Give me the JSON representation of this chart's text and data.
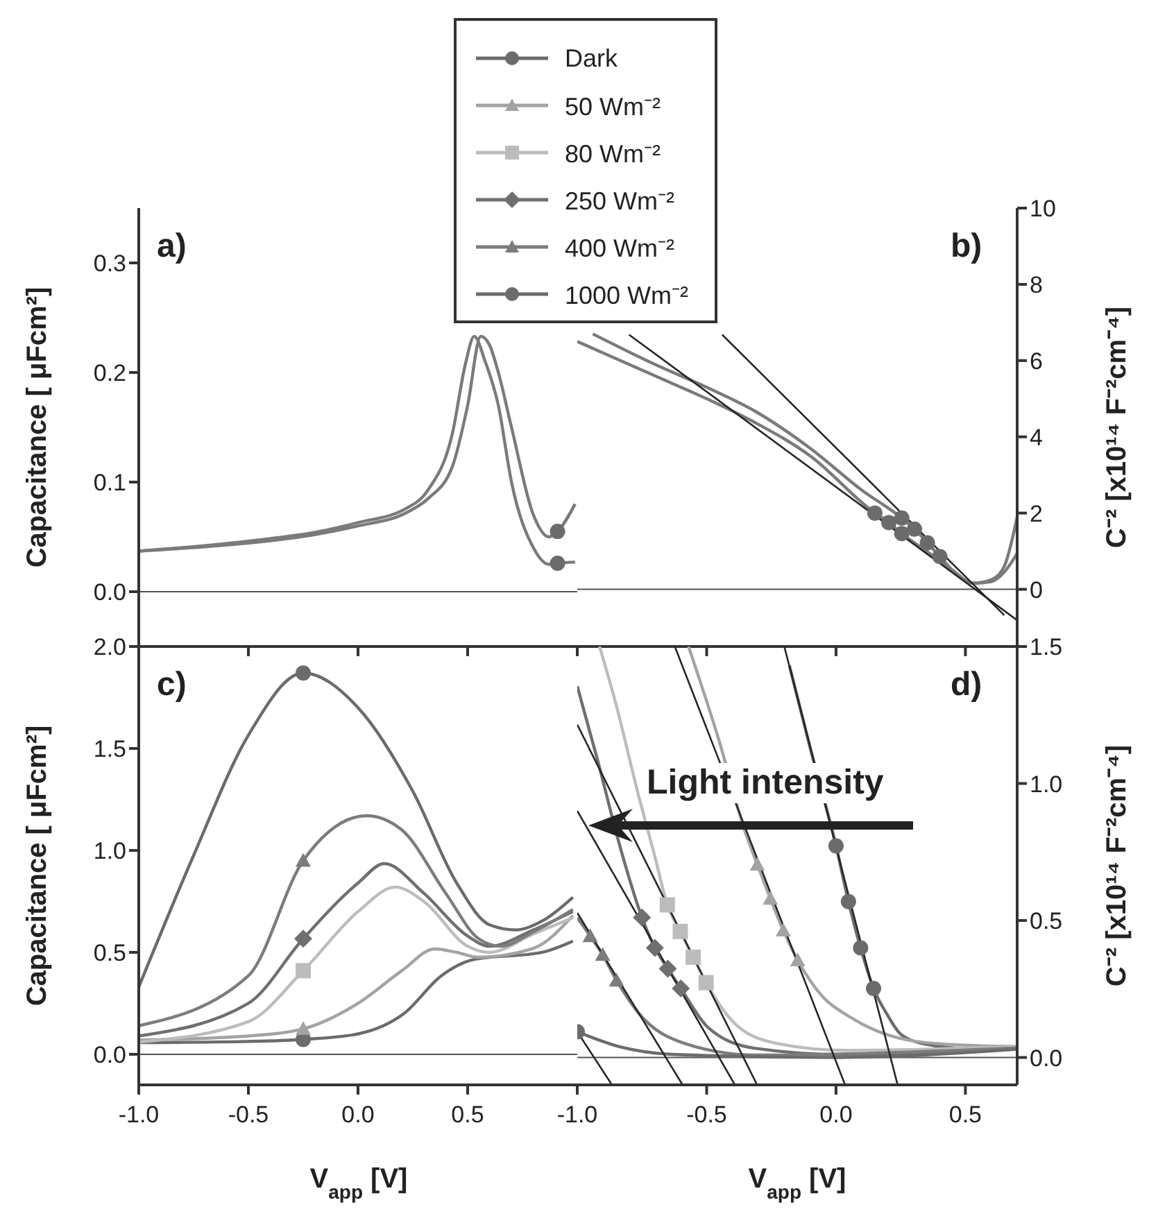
{
  "chart_data": [
    {
      "type": "line",
      "title": "a)",
      "ylabel": "Capacitance [ μFcm²]",
      "xlim": [
        -1,
        1
      ],
      "ylim": [
        -0.05,
        0.35
      ],
      "xticks": [
        -1,
        -0.5,
        0,
        0.5
      ],
      "yticks": [
        {
          "value": 0,
          "label": "0.0"
        },
        0.1,
        0.2,
        0.3
      ],
      "tick_labels": "y",
      "ref_lines": [
        {
          "axis": "y",
          "value": 0,
          "color": "#555555"
        }
      ],
      "series": [
        {
          "color": "#7a7a7a",
          "x": [
            -1,
            -0.7,
            -0.42,
            -0.2,
            0,
            0.22,
            0.32,
            0.43,
            0.49,
            0.53,
            0.58,
            0.64,
            0.7,
            0.8,
            0.87,
            0.91,
            0.99
          ],
          "values": [
            0.037,
            0.042,
            0.048,
            0.054,
            0.063,
            0.076,
            0.093,
            0.144,
            0.208,
            0.233,
            0.21,
            0.17,
            0.1,
            0.04,
            0.025,
            0.026,
            0.027
          ]
        },
        {
          "color": "#7a7a7a",
          "x": [
            -1,
            -0.7,
            -0.42,
            -0.2,
            0,
            0.22,
            0.32,
            0.43,
            0.5,
            0.56,
            0.6,
            0.64,
            0.7,
            0.8,
            0.87,
            0.91,
            0.99
          ],
          "values": [
            0.037,
            0.041,
            0.046,
            0.052,
            0.06,
            0.072,
            0.085,
            0.114,
            0.17,
            0.233,
            0.225,
            0.2,
            0.15,
            0.07,
            0.05,
            0.055,
            0.08
          ]
        },
        {
          "type": "scatter",
          "marker": "circle",
          "color": "#6b6b6b",
          "x": [
            0.91,
            0.91
          ],
          "values": [
            0.026,
            0.055
          ]
        }
      ]
    },
    {
      "type": "line",
      "title": "b)",
      "ylabel": "C⁻² [x10¹⁴ F⁻²cm⁻⁴]",
      "xlim": [
        -1,
        0.7
      ],
      "ylim": [
        -1.5,
        10
      ],
      "xticks": [
        -1,
        -0.5,
        0,
        0.5
      ],
      "yticks": [
        0,
        2,
        4,
        6,
        8,
        10
      ],
      "tick_labels": "y",
      "ref_lines": [
        {
          "axis": "y",
          "value": 0,
          "color": "#555555"
        }
      ],
      "series": [
        {
          "color": "#7a7a7a",
          "x": [
            -0.94,
            -0.7,
            -0.5,
            -0.32,
            -0.1,
            0.1,
            0.254,
            0.303,
            0.353,
            0.401,
            0.45,
            0.53,
            0.6,
            0.65,
            0.7
          ],
          "values": [
            6.7,
            5.9,
            5.3,
            4.7,
            3.7,
            2.6,
            1.87,
            1.58,
            1.22,
            0.86,
            0.5,
            0.16,
            0.25,
            0.6,
            1.9
          ]
        },
        {
          "color": "#7a7a7a",
          "x": [
            -1,
            -0.7,
            -0.5,
            -0.32,
            -0.1,
            0.15,
            0.204,
            0.254,
            0.35,
            0.45,
            0.53,
            0.6,
            0.65,
            0.7
          ],
          "values": [
            6.5,
            5.6,
            5.0,
            4.4,
            3.5,
            2.0,
            1.75,
            1.46,
            1.0,
            0.5,
            0.16,
            0.2,
            0.45,
            0.94
          ]
        },
        {
          "color": "#262626",
          "x": [
            -0.8,
            0.7
          ],
          "values": [
            6.68,
            -0.81
          ]
        },
        {
          "color": "#262626",
          "x": [
            -0.44,
            0.65
          ],
          "values": [
            6.68,
            -0.68
          ]
        },
        {
          "type": "scatter",
          "marker": "circle",
          "color": "#6b6b6b",
          "x": [
            0.254,
            0.303,
            0.353,
            0.401,
            0.15,
            0.204,
            0.254
          ],
          "values": [
            1.87,
            1.58,
            1.22,
            0.86,
            2.0,
            1.75,
            1.46
          ]
        }
      ]
    },
    {
      "type": "line",
      "title": "c)",
      "ylabel": "Capacitance [ μFcm²]",
      "xlabel": "V$_{app}$ [V]",
      "xlim": [
        -1,
        1
      ],
      "ylim": [
        -0.15,
        2
      ],
      "xticks": [
        {
          "value": -1,
          "label": "-1.0"
        },
        {
          "value": -0.5,
          "label": "-0.5"
        },
        {
          "value": 0,
          "label": "0.0"
        },
        0.5
      ],
      "yticks": [
        {
          "value": 0,
          "label": "0.0"
        },
        0.5,
        {
          "value": 1,
          "label": "1.0"
        },
        1.5,
        {
          "value": 2,
          "label": "2.0"
        }
      ],
      "legend": "top",
      "ref_lines": [
        {
          "axis": "y",
          "value": 0,
          "color": "#555555"
        }
      ],
      "series": [
        {
          "color": "#6b6b6b",
          "x": [
            -1,
            -0.5,
            -0.25,
            0,
            0.21,
            0.38,
            0.53,
            0.84,
            0.98
          ],
          "values": [
            0.057,
            0.063,
            0.073,
            0.1,
            0.2,
            0.385,
            0.465,
            0.5,
            0.555
          ]
        },
        {
          "color": "#a3a3a3",
          "x": [
            -1,
            -0.5,
            -0.25,
            0,
            0.2,
            0.35,
            0.45,
            0.55,
            0.8,
            0.98
          ],
          "values": [
            0.07,
            0.09,
            0.125,
            0.25,
            0.41,
            0.517,
            0.5,
            0.476,
            0.52,
            0.68
          ]
        },
        {
          "color": "#bcbcbc",
          "x": [
            -1,
            -0.5,
            -0.25,
            0,
            0.17,
            0.3,
            0.5,
            0.6,
            0.8,
            0.98
          ],
          "values": [
            0.06,
            0.16,
            0.41,
            0.7,
            0.82,
            0.75,
            0.53,
            0.5,
            0.59,
            0.67
          ]
        },
        {
          "color": "#6f6f6f",
          "x": [
            -1,
            -0.5,
            -0.25,
            0,
            0.12,
            0.3,
            0.5,
            0.6,
            0.8,
            0.98
          ],
          "values": [
            0.09,
            0.25,
            0.567,
            0.84,
            0.935,
            0.79,
            0.58,
            0.53,
            0.61,
            0.7
          ]
        },
        {
          "color": "#7c7c7c",
          "x": [
            -1,
            -0.5,
            -0.25,
            0.04,
            0.2,
            0.4,
            0.55,
            0.65,
            0.8,
            0.98
          ],
          "values": [
            0.14,
            0.385,
            0.95,
            1.17,
            1.1,
            0.79,
            0.567,
            0.53,
            0.6,
            0.71
          ]
        },
        {
          "color": "#6b6b6b",
          "x": [
            -1,
            -0.75,
            -0.5,
            -0.25,
            0,
            0.25,
            0.45,
            0.6,
            0.72,
            0.85,
            0.98
          ],
          "values": [
            0.33,
            0.975,
            1.565,
            1.87,
            1.7,
            1.29,
            0.84,
            0.635,
            0.61,
            0.66,
            0.77
          ]
        },
        {
          "name": "Dark",
          "type": "scatter",
          "marker": "circle",
          "color": "#6b6b6b",
          "x": [
            -0.25
          ],
          "values": [
            0.073
          ]
        },
        {
          "name": "50 Wm⁻²",
          "type": "scatter",
          "marker": "triangle",
          "color": "#a3a3a3",
          "x": [
            -0.25
          ],
          "values": [
            0.125
          ]
        },
        {
          "name": "80 Wm⁻²",
          "type": "scatter",
          "marker": "square",
          "color": "#bcbcbc",
          "x": [
            -0.25
          ],
          "values": [
            0.41
          ]
        },
        {
          "name": "250 Wm⁻²",
          "type": "scatter",
          "marker": "diamond",
          "color": "#6f6f6f",
          "x": [
            -0.25
          ],
          "values": [
            0.567
          ]
        },
        {
          "name": "400 Wm⁻²",
          "type": "scatter",
          "marker": "triangle",
          "color": "#7c7c7c",
          "x": [
            -0.25
          ],
          "values": [
            0.95
          ]
        },
        {
          "name": "1000 Wm⁻²",
          "type": "scatter",
          "marker": "circle",
          "color": "#6b6b6b",
          "x": [
            -0.25
          ],
          "values": [
            1.87
          ]
        }
      ]
    },
    {
      "type": "line",
      "title": "d)",
      "ylabel": "C⁻² [x10¹⁴ F⁻²cm⁻⁴]",
      "xlabel": "V$_{app}$ [V]",
      "xlim": [
        -1,
        0.7
      ],
      "ylim": [
        -0.1,
        1.5
      ],
      "xticks": [
        {
          "value": -1,
          "label": "-1.0"
        },
        {
          "value": -0.5,
          "label": "-0.5"
        },
        {
          "value": 0,
          "label": "0.0"
        },
        0.5
      ],
      "yticks": [
        {
          "value": 0,
          "label": "0.0"
        },
        0.5,
        {
          "value": 1,
          "label": "1.0"
        },
        1.5
      ],
      "annotations": [
        "Light intensity"
      ],
      "ref_lines": [
        {
          "axis": "y",
          "value": 0,
          "color": "#555555"
        }
      ],
      "series": [
        {
          "color": "#6b6b6b",
          "x": [
            -0.18,
            -0.1,
            0,
            0.048,
            0.095,
            0.145,
            0.2,
            0.25,
            0.35,
            0.5,
            0.7
          ],
          "values": [
            1.43,
            1.13,
            0.772,
            0.569,
            0.4,
            0.252,
            0.153,
            0.085,
            0.048,
            0.034,
            0.037
          ]
        },
        {
          "color": "#a3a3a3",
          "x": [
            -0.57,
            -0.45,
            -0.35,
            -0.304,
            -0.254,
            -0.204,
            -0.148,
            -0.05,
            0.05,
            0.15,
            0.3,
            0.5,
            0.7
          ],
          "values": [
            1.5,
            1.15,
            0.82,
            0.704,
            0.58,
            0.464,
            0.355,
            0.22,
            0.15,
            0.1,
            0.06,
            0.045,
            0.04
          ]
        },
        {
          "color": "#bcbcbc",
          "x": [
            -0.914,
            -0.852,
            -0.763,
            -0.7,
            -0.652,
            -0.602,
            -0.552,
            -0.502,
            -0.387,
            -0.227,
            0.04,
            0.7
          ],
          "values": [
            1.5,
            1.295,
            0.955,
            0.733,
            0.557,
            0.46,
            0.366,
            0.273,
            0.12,
            0.051,
            0.026,
            0.04
          ]
        },
        {
          "color": "#6f6f6f",
          "x": [
            -1,
            -0.923,
            -0.834,
            -0.75,
            -0.7,
            -0.65,
            -0.6,
            -0.495,
            -0.316,
            0.04,
            0.7
          ],
          "values": [
            1.355,
            1.09,
            0.767,
            0.511,
            0.4,
            0.324,
            0.252,
            0.11,
            0.034,
            0.01,
            0.035
          ]
        },
        {
          "color": "#7c7c7c",
          "x": [
            -1,
            -0.95,
            -0.902,
            -0.848,
            -0.763,
            -0.584,
            -0.316,
            0.7
          ],
          "values": [
            0.51,
            0.443,
            0.375,
            0.281,
            0.162,
            0.051,
            0.009,
            0.035
          ]
        },
        {
          "color": "#6b6b6b",
          "x": [
            -1,
            -0.85,
            -0.6,
            0,
            0.7
          ],
          "values": [
            0.094,
            0.043,
            0.01,
            0.0,
            0.03
          ]
        },
        {
          "color": "#262626",
          "x": [
            -0.2,
            0.238
          ],
          "values": [
            1.5,
            -0.1
          ]
        },
        {
          "color": "#262626",
          "x": [
            -0.623,
            0.035
          ],
          "values": [
            1.5,
            -0.1
          ]
        },
        {
          "color": "#262626",
          "x": [
            -1,
            -0.305
          ],
          "values": [
            1.215,
            -0.1
          ]
        },
        {
          "color": "#262626",
          "x": [
            -1,
            -0.391
          ],
          "values": [
            0.9,
            -0.1
          ]
        },
        {
          "color": "#262626",
          "x": [
            -1,
            -0.593
          ],
          "values": [
            0.528,
            -0.1
          ]
        },
        {
          "color": "#262626",
          "x": [
            -1,
            -0.866
          ],
          "values": [
            0.094,
            -0.1
          ]
        },
        {
          "type": "scatter",
          "marker": "circle",
          "color": "#6b6b6b",
          "x": [
            0,
            0.048,
            0.095,
            0.145,
            -1
          ],
          "values": [
            0.772,
            0.569,
            0.4,
            0.252,
            0.094
          ]
        },
        {
          "type": "scatter",
          "marker": "triangle",
          "color": "#a3a3a3",
          "x": [
            -0.304,
            -0.254,
            -0.204,
            -0.148
          ],
          "values": [
            0.704,
            0.58,
            0.464,
            0.355
          ]
        },
        {
          "type": "scatter",
          "marker": "square",
          "color": "#bcbcbc",
          "x": [
            -0.652,
            -0.602,
            -0.552,
            -0.502
          ],
          "values": [
            0.557,
            0.46,
            0.366,
            0.273
          ]
        },
        {
          "type": "scatter",
          "marker": "diamond",
          "color": "#6f6f6f",
          "x": [
            -0.75,
            -0.7,
            -0.65,
            -0.6
          ],
          "values": [
            0.511,
            0.4,
            0.324,
            0.252
          ]
        },
        {
          "type": "scatter",
          "marker": "triangle",
          "color": "#7c7c7c",
          "x": [
            -0.95,
            -0.902,
            -0.848
          ],
          "values": [
            0.443,
            0.375,
            0.281
          ]
        }
      ]
    }
  ]
}
